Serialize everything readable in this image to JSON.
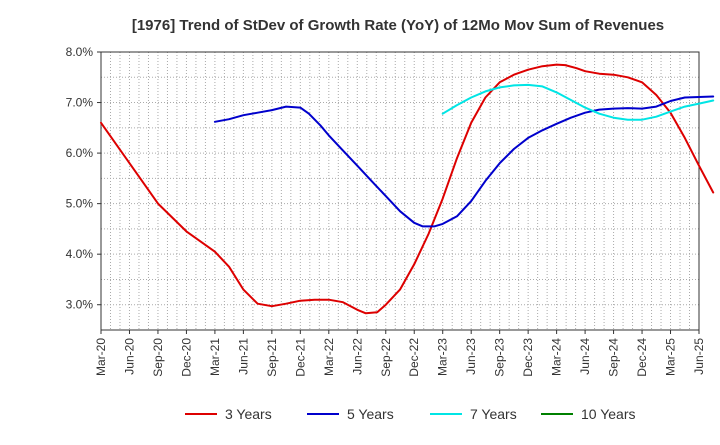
{
  "chart_data": {
    "type": "line",
    "title": "[1976]  Trend of StDev of Growth Rate (YoY) of 12Mo Mov Sum of Revenues",
    "xlabel": "",
    "ylabel": "",
    "ylim": [
      2.5,
      8.0
    ],
    "yticks": [
      3.0,
      4.0,
      5.0,
      6.0,
      7.0,
      8.0
    ],
    "ytick_labels": [
      "3.0%",
      "4.0%",
      "5.0%",
      "6.0%",
      "7.0%",
      "8.0%"
    ],
    "x_categories": [
      "Mar-20",
      "Jun-20",
      "Sep-20",
      "Dec-20",
      "Mar-21",
      "Jun-21",
      "Sep-21",
      "Dec-21",
      "Mar-22",
      "Jun-22",
      "Sep-22",
      "Dec-22",
      "Mar-23",
      "Jun-23",
      "Sep-23",
      "Dec-23",
      "Mar-24",
      "Jun-24",
      "Sep-24",
      "Dec-24",
      "Mar-25",
      "Jun-25"
    ],
    "grid": true,
    "legend_position": "bottom",
    "series": [
      {
        "name": "3 Years",
        "color": "#dd0000",
        "points": [
          [
            0,
            6.6
          ],
          [
            1,
            5.8
          ],
          [
            2,
            5.0
          ],
          [
            3,
            4.45
          ],
          [
            4,
            4.05
          ],
          [
            4.5,
            3.75
          ],
          [
            5,
            3.3
          ],
          [
            5.5,
            3.02
          ],
          [
            6,
            2.97
          ],
          [
            6.5,
            3.02
          ],
          [
            7,
            3.08
          ],
          [
            7.5,
            3.1
          ],
          [
            8,
            3.1
          ],
          [
            8.5,
            3.05
          ],
          [
            9,
            2.9
          ],
          [
            9.3,
            2.83
          ],
          [
            9.7,
            2.85
          ],
          [
            10,
            3.0
          ],
          [
            10.5,
            3.3
          ],
          [
            11,
            3.8
          ],
          [
            11.5,
            4.4
          ],
          [
            12,
            5.1
          ],
          [
            12.5,
            5.9
          ],
          [
            13,
            6.6
          ],
          [
            13.5,
            7.1
          ],
          [
            14,
            7.4
          ],
          [
            14.5,
            7.55
          ],
          [
            15,
            7.65
          ],
          [
            15.5,
            7.72
          ],
          [
            16,
            7.75
          ],
          [
            16.3,
            7.74
          ],
          [
            16.7,
            7.68
          ],
          [
            17,
            7.62
          ],
          [
            17.5,
            7.57
          ],
          [
            18,
            7.55
          ],
          [
            18.5,
            7.5
          ],
          [
            19,
            7.4
          ],
          [
            19.5,
            7.15
          ],
          [
            20,
            6.8
          ],
          [
            20.5,
            6.3
          ],
          [
            21,
            5.75
          ],
          [
            21.5,
            5.22
          ]
        ]
      },
      {
        "name": "5 Years",
        "color": "#0000cc",
        "points": [
          [
            4,
            6.62
          ],
          [
            4.5,
            6.67
          ],
          [
            5,
            6.75
          ],
          [
            5.5,
            6.8
          ],
          [
            6,
            6.85
          ],
          [
            6.5,
            6.92
          ],
          [
            7,
            6.9
          ],
          [
            7.3,
            6.78
          ],
          [
            7.7,
            6.55
          ],
          [
            8,
            6.35
          ],
          [
            8.5,
            6.05
          ],
          [
            9,
            5.75
          ],
          [
            9.5,
            5.45
          ],
          [
            10,
            5.15
          ],
          [
            10.5,
            4.85
          ],
          [
            11,
            4.62
          ],
          [
            11.3,
            4.55
          ],
          [
            11.7,
            4.55
          ],
          [
            12,
            4.6
          ],
          [
            12.5,
            4.75
          ],
          [
            13,
            5.05
          ],
          [
            13.5,
            5.45
          ],
          [
            14,
            5.8
          ],
          [
            14.5,
            6.08
          ],
          [
            15,
            6.3
          ],
          [
            15.5,
            6.45
          ],
          [
            16,
            6.58
          ],
          [
            16.5,
            6.7
          ],
          [
            17,
            6.8
          ],
          [
            17.5,
            6.86
          ],
          [
            18,
            6.88
          ],
          [
            18.5,
            6.89
          ],
          [
            19,
            6.88
          ],
          [
            19.5,
            6.92
          ],
          [
            20,
            7.03
          ],
          [
            20.5,
            7.1
          ],
          [
            21,
            7.11
          ],
          [
            21.5,
            7.12
          ]
        ]
      },
      {
        "name": "7 Years",
        "color": "#00e5e5",
        "points": [
          [
            12,
            6.78
          ],
          [
            12.5,
            6.95
          ],
          [
            13,
            7.1
          ],
          [
            13.5,
            7.22
          ],
          [
            14,
            7.3
          ],
          [
            14.5,
            7.34
          ],
          [
            15,
            7.35
          ],
          [
            15.5,
            7.32
          ],
          [
            16,
            7.2
          ],
          [
            16.5,
            7.05
          ],
          [
            17,
            6.9
          ],
          [
            17.5,
            6.78
          ],
          [
            18,
            6.7
          ],
          [
            18.5,
            6.66
          ],
          [
            19,
            6.66
          ],
          [
            19.5,
            6.72
          ],
          [
            20,
            6.82
          ],
          [
            20.5,
            6.92
          ],
          [
            21,
            6.98
          ],
          [
            21.5,
            7.04
          ]
        ]
      },
      {
        "name": "10 Years",
        "color": "#008000",
        "points": []
      }
    ]
  }
}
